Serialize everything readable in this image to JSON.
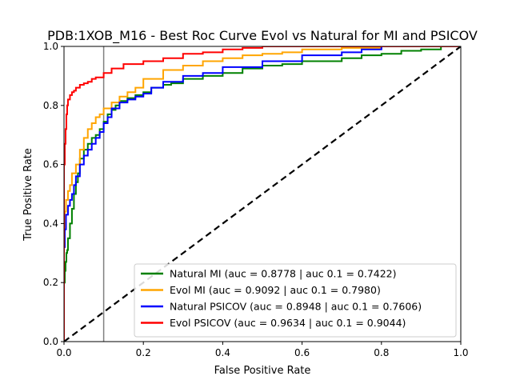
{
  "chart_data": {
    "type": "line",
    "title": "PDB:1XOB_M16 - Best Roc Curve Evol vs Natural for MI and PSICOV",
    "xlabel": "False Positive Rate",
    "ylabel": "True Positive Rate",
    "xlim": [
      0,
      1
    ],
    "ylim": [
      0,
      1
    ],
    "xticks": [
      "0.0",
      "0.2",
      "0.4",
      "0.6",
      "0.8",
      "1.0"
    ],
    "yticks": [
      "0.0",
      "0.2",
      "0.4",
      "0.6",
      "0.8",
      "1.0"
    ],
    "grid": false,
    "legend_position": "lower-right",
    "reference_line": {
      "x": 0.1,
      "color": "#808080"
    },
    "diagonal": {
      "points": [
        [
          0,
          0
        ],
        [
          1,
          1
        ]
      ],
      "color": "#000000",
      "style": "dashed"
    },
    "series": [
      {
        "name": "Natural MI (auc = 0.8778 | auc 0.1 = 0.7422)",
        "color": "#008000",
        "points": [
          [
            0,
            0
          ],
          [
            0,
            0.1
          ],
          [
            0.002,
            0.2
          ],
          [
            0.004,
            0.24
          ],
          [
            0.006,
            0.27
          ],
          [
            0.008,
            0.3
          ],
          [
            0.01,
            0.31
          ],
          [
            0.015,
            0.35
          ],
          [
            0.02,
            0.4
          ],
          [
            0.025,
            0.45
          ],
          [
            0.03,
            0.5
          ],
          [
            0.035,
            0.54
          ],
          [
            0.04,
            0.57
          ],
          [
            0.05,
            0.62
          ],
          [
            0.06,
            0.65
          ],
          [
            0.07,
            0.67
          ],
          [
            0.08,
            0.69
          ],
          [
            0.09,
            0.7
          ],
          [
            0.1,
            0.72
          ],
          [
            0.11,
            0.745
          ],
          [
            0.12,
            0.77
          ],
          [
            0.13,
            0.785
          ],
          [
            0.14,
            0.8
          ],
          [
            0.16,
            0.815
          ],
          [
            0.18,
            0.825
          ],
          [
            0.2,
            0.835
          ],
          [
            0.22,
            0.845
          ],
          [
            0.25,
            0.86
          ],
          [
            0.27,
            0.87
          ],
          [
            0.3,
            0.875
          ],
          [
            0.35,
            0.89
          ],
          [
            0.4,
            0.9
          ],
          [
            0.45,
            0.91
          ],
          [
            0.5,
            0.925
          ],
          [
            0.55,
            0.935
          ],
          [
            0.6,
            0.94
          ],
          [
            0.7,
            0.95
          ],
          [
            0.75,
            0.96
          ],
          [
            0.8,
            0.97
          ],
          [
            0.85,
            0.975
          ],
          [
            0.9,
            0.985
          ],
          [
            0.95,
            0.99
          ],
          [
            1,
            1
          ]
        ]
      },
      {
        "name": "Evol MI (auc = 0.9092 | auc 0.1 = 0.7980)",
        "color": "#FFA500",
        "points": [
          [
            0,
            0
          ],
          [
            0,
            0.28
          ],
          [
            0.002,
            0.38
          ],
          [
            0.005,
            0.44
          ],
          [
            0.01,
            0.48
          ],
          [
            0.015,
            0.51
          ],
          [
            0.02,
            0.53
          ],
          [
            0.03,
            0.57
          ],
          [
            0.04,
            0.6
          ],
          [
            0.05,
            0.65
          ],
          [
            0.06,
            0.69
          ],
          [
            0.07,
            0.72
          ],
          [
            0.08,
            0.74
          ],
          [
            0.09,
            0.76
          ],
          [
            0.1,
            0.77
          ],
          [
            0.12,
            0.79
          ],
          [
            0.14,
            0.81
          ],
          [
            0.16,
            0.83
          ],
          [
            0.18,
            0.845
          ],
          [
            0.2,
            0.86
          ],
          [
            0.25,
            0.89
          ],
          [
            0.3,
            0.92
          ],
          [
            0.35,
            0.935
          ],
          [
            0.4,
            0.95
          ],
          [
            0.45,
            0.96
          ],
          [
            0.5,
            0.97
          ],
          [
            0.55,
            0.975
          ],
          [
            0.6,
            0.98
          ],
          [
            0.7,
            0.99
          ],
          [
            0.8,
            0.995
          ],
          [
            0.9,
            1
          ],
          [
            1,
            1
          ]
        ]
      },
      {
        "name": "Natural PSICOV (auc = 0.8948 | auc 0.1 = 0.7606)",
        "color": "#0000FF",
        "points": [
          [
            0,
            0
          ],
          [
            0,
            0.22
          ],
          [
            0.002,
            0.32
          ],
          [
            0.005,
            0.38
          ],
          [
            0.01,
            0.43
          ],
          [
            0.015,
            0.46
          ],
          [
            0.02,
            0.48
          ],
          [
            0.025,
            0.5
          ],
          [
            0.03,
            0.53
          ],
          [
            0.04,
            0.56
          ],
          [
            0.05,
            0.6
          ],
          [
            0.06,
            0.63
          ],
          [
            0.07,
            0.65
          ],
          [
            0.08,
            0.67
          ],
          [
            0.09,
            0.69
          ],
          [
            0.1,
            0.71
          ],
          [
            0.11,
            0.74
          ],
          [
            0.12,
            0.76
          ],
          [
            0.14,
            0.79
          ],
          [
            0.16,
            0.81
          ],
          [
            0.18,
            0.82
          ],
          [
            0.2,
            0.83
          ],
          [
            0.22,
            0.84
          ],
          [
            0.25,
            0.86
          ],
          [
            0.3,
            0.88
          ],
          [
            0.35,
            0.9
          ],
          [
            0.4,
            0.91
          ],
          [
            0.5,
            0.93
          ],
          [
            0.6,
            0.95
          ],
          [
            0.7,
            0.97
          ],
          [
            0.75,
            0.98
          ],
          [
            0.8,
            0.99
          ],
          [
            0.85,
            1
          ],
          [
            1,
            1
          ]
        ]
      },
      {
        "name": "Evol PSICOV (auc = 0.9634 | auc 0.1 = 0.9044)",
        "color": "#FF0000",
        "points": [
          [
            0,
            0
          ],
          [
            0,
            0.5
          ],
          [
            0.002,
            0.6
          ],
          [
            0.004,
            0.67
          ],
          [
            0.006,
            0.72
          ],
          [
            0.008,
            0.77
          ],
          [
            0.01,
            0.8
          ],
          [
            0.015,
            0.82
          ],
          [
            0.02,
            0.835
          ],
          [
            0.025,
            0.845
          ],
          [
            0.03,
            0.85
          ],
          [
            0.04,
            0.86
          ],
          [
            0.05,
            0.87
          ],
          [
            0.06,
            0.875
          ],
          [
            0.07,
            0.88
          ],
          [
            0.08,
            0.89
          ],
          [
            0.1,
            0.895
          ],
          [
            0.12,
            0.91
          ],
          [
            0.15,
            0.925
          ],
          [
            0.2,
            0.94
          ],
          [
            0.25,
            0.95
          ],
          [
            0.3,
            0.96
          ],
          [
            0.35,
            0.975
          ],
          [
            0.4,
            0.98
          ],
          [
            0.45,
            0.99
          ],
          [
            0.5,
            0.995
          ],
          [
            0.55,
            1
          ],
          [
            1,
            1
          ]
        ]
      }
    ]
  }
}
